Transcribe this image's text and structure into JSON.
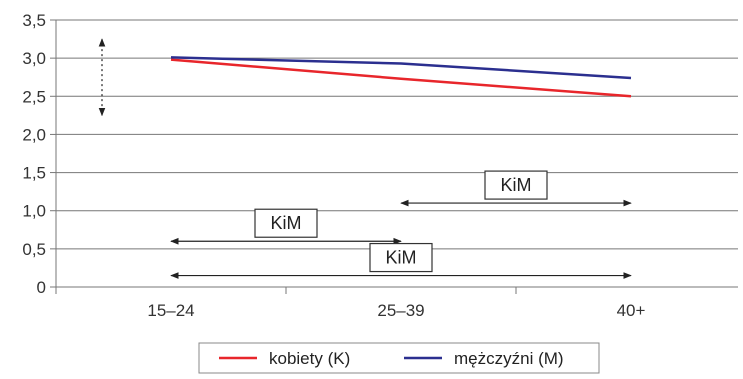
{
  "chart_data": {
    "type": "line",
    "title": "",
    "xlabel": "",
    "ylabel": "",
    "categories": [
      "15–24",
      "25–39",
      "40+"
    ],
    "y_tick_labels": [
      "0",
      "0,5",
      "1,0",
      "1,5",
      "2,0",
      "2,5",
      "3,0",
      "3,5"
    ],
    "ylim": [
      0,
      3.5
    ],
    "grid": "horizontal",
    "legend_position": "bottom",
    "series": [
      {
        "name": "kobiety (K)",
        "color": "#e8262b",
        "values": [
          2.98,
          2.73,
          2.5
        ]
      },
      {
        "name": "mężczyźni (M)",
        "color": "#2b2f8f",
        "values": [
          3.01,
          2.93,
          2.74
        ]
      }
    ],
    "annotations": [
      {
        "label": "KiM",
        "from": "25–39",
        "to": "40+",
        "y": 1.1
      },
      {
        "label": "KiM",
        "from": "15–24",
        "to": "25–39",
        "y": 0.6
      },
      {
        "label": "KiM",
        "from": "15–24",
        "to": "40+",
        "y": 0.15
      }
    ],
    "range_marker": {
      "from": 2.25,
      "to": 3.25
    }
  }
}
